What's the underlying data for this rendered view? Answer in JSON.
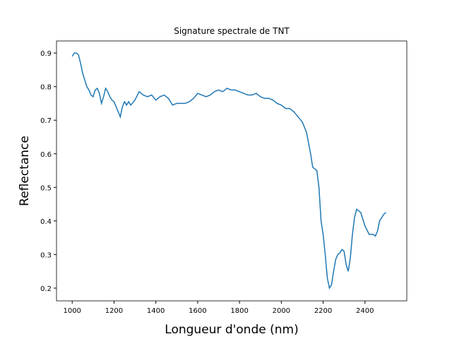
{
  "chart_data": {
    "type": "line",
    "title": "Signature spectrale de TNT",
    "xlabel": "Longueur d'onde (nm)",
    "ylabel": "Reflectance",
    "x": [
      1000,
      1010,
      1020,
      1030,
      1040,
      1050,
      1060,
      1070,
      1080,
      1090,
      1100,
      1110,
      1120,
      1130,
      1140,
      1150,
      1160,
      1170,
      1180,
      1190,
      1200,
      1210,
      1220,
      1230,
      1240,
      1250,
      1260,
      1270,
      1280,
      1300,
      1320,
      1340,
      1360,
      1380,
      1400,
      1420,
      1440,
      1460,
      1480,
      1500,
      1520,
      1540,
      1560,
      1580,
      1600,
      1620,
      1640,
      1660,
      1680,
      1700,
      1720,
      1740,
      1760,
      1780,
      1800,
      1820,
      1840,
      1860,
      1880,
      1900,
      1920,
      1940,
      1960,
      1980,
      2000,
      2020,
      2040,
      2060,
      2080,
      2100,
      2120,
      2140,
      2150,
      2160,
      2170,
      2180,
      2190,
      2200,
      2210,
      2220,
      2230,
      2240,
      2250,
      2260,
      2270,
      2280,
      2290,
      2300,
      2310,
      2320,
      2330,
      2340,
      2350,
      2360,
      2370,
      2380,
      2390,
      2400,
      2420,
      2440,
      2450,
      2460,
      2470,
      2480,
      2490,
      2500
    ],
    "series": [
      {
        "name": "TNT",
        "color": "#1f77b4",
        "values": [
          0.89,
          0.9,
          0.9,
          0.895,
          0.87,
          0.84,
          0.82,
          0.8,
          0.79,
          0.775,
          0.77,
          0.79,
          0.795,
          0.78,
          0.75,
          0.77,
          0.795,
          0.785,
          0.77,
          0.76,
          0.755,
          0.74,
          0.725,
          0.71,
          0.74,
          0.755,
          0.745,
          0.755,
          0.745,
          0.76,
          0.785,
          0.775,
          0.77,
          0.775,
          0.76,
          0.77,
          0.775,
          0.765,
          0.745,
          0.75,
          0.75,
          0.75,
          0.755,
          0.765,
          0.78,
          0.775,
          0.77,
          0.775,
          0.785,
          0.79,
          0.785,
          0.795,
          0.79,
          0.79,
          0.785,
          0.78,
          0.775,
          0.775,
          0.78,
          0.77,
          0.765,
          0.765,
          0.76,
          0.75,
          0.745,
          0.735,
          0.735,
          0.725,
          0.71,
          0.695,
          0.665,
          0.6,
          0.56,
          0.555,
          0.55,
          0.5,
          0.4,
          0.36,
          0.3,
          0.23,
          0.2,
          0.21,
          0.25,
          0.285,
          0.3,
          0.305,
          0.315,
          0.31,
          0.27,
          0.25,
          0.29,
          0.36,
          0.41,
          0.435,
          0.43,
          0.425,
          0.405,
          0.385,
          0.36,
          0.36,
          0.355,
          0.37,
          0.4,
          0.41,
          0.42,
          0.425
        ]
      }
    ],
    "xlim": [
      925,
      2600
    ],
    "ylim": [
      0.162,
      0.936
    ],
    "xticks": [
      1000,
      1200,
      1400,
      1600,
      1800,
      2000,
      2200,
      2400
    ],
    "yticks": [
      0.2,
      0.3,
      0.4,
      0.5,
      0.6,
      0.7,
      0.8,
      0.9
    ]
  }
}
